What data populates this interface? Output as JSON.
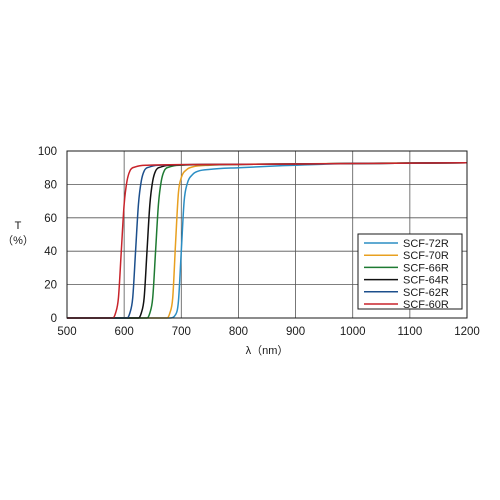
{
  "chart_data": {
    "type": "line",
    "xlabel": "λ（nm）",
    "ylabel_top": "T",
    "ylabel_bottom": "（%）",
    "xlim": [
      500,
      1200
    ],
    "ylim": [
      0,
      100
    ],
    "xticks": [
      500,
      600,
      700,
      800,
      900,
      1000,
      1100,
      1200
    ],
    "yticks": [
      0,
      20,
      40,
      60,
      80,
      100
    ],
    "grid": "vertical and horizontal at ticks",
    "legend_position": "right, middle",
    "series": [
      {
        "name": "SCF-72R",
        "color": "#2b8ec4",
        "x": [
          500,
          680,
          690,
          695,
          700,
          705,
          710,
          720,
          730,
          750,
          800,
          900,
          1000,
          1200
        ],
        "y": [
          0,
          0,
          2,
          10,
          40,
          70,
          80,
          86,
          88,
          89,
          90,
          91.5,
          92.5,
          93
        ]
      },
      {
        "name": "SCF-70R",
        "color": "#e8a020",
        "x": [
          500,
          675,
          680,
          685,
          690,
          695,
          700,
          710,
          720,
          750,
          800,
          900,
          1000,
          1200
        ],
        "y": [
          0,
          0,
          3,
          12,
          45,
          75,
          84,
          89,
          90.5,
          91.5,
          92,
          92.3,
          92.6,
          93
        ]
      },
      {
        "name": "SCF-66R",
        "color": "#1e7a32",
        "x": [
          500,
          640,
          645,
          650,
          655,
          660,
          665,
          670,
          680,
          700,
          800,
          1000,
          1200
        ],
        "y": [
          0,
          0,
          3,
          12,
          40,
          68,
          82,
          88,
          90.5,
          91.5,
          92,
          92.5,
          93
        ]
      },
      {
        "name": "SCF-64R",
        "color": "#111111",
        "x": [
          500,
          625,
          630,
          635,
          640,
          645,
          650,
          655,
          665,
          680,
          800,
          1000,
          1200
        ],
        "y": [
          0,
          0,
          3,
          12,
          40,
          68,
          82,
          88,
          90.5,
          91.5,
          92,
          92.5,
          93
        ]
      },
      {
        "name": "SCF-62R",
        "color": "#1c4f8c",
        "x": [
          500,
          605,
          610,
          615,
          620,
          625,
          630,
          635,
          645,
          660,
          800,
          1000,
          1200
        ],
        "y": [
          0,
          0,
          3,
          12,
          40,
          68,
          82,
          88,
          90.5,
          91.5,
          92,
          92.5,
          93
        ]
      },
      {
        "name": "SCF-60R",
        "color": "#c8242b",
        "x": [
          500,
          580,
          585,
          590,
          595,
          600,
          605,
          610,
          620,
          640,
          800,
          1000,
          1200
        ],
        "y": [
          0,
          0,
          3,
          12,
          40,
          68,
          82,
          88,
          90.5,
          91.5,
          92,
          92.5,
          93
        ]
      }
    ]
  }
}
